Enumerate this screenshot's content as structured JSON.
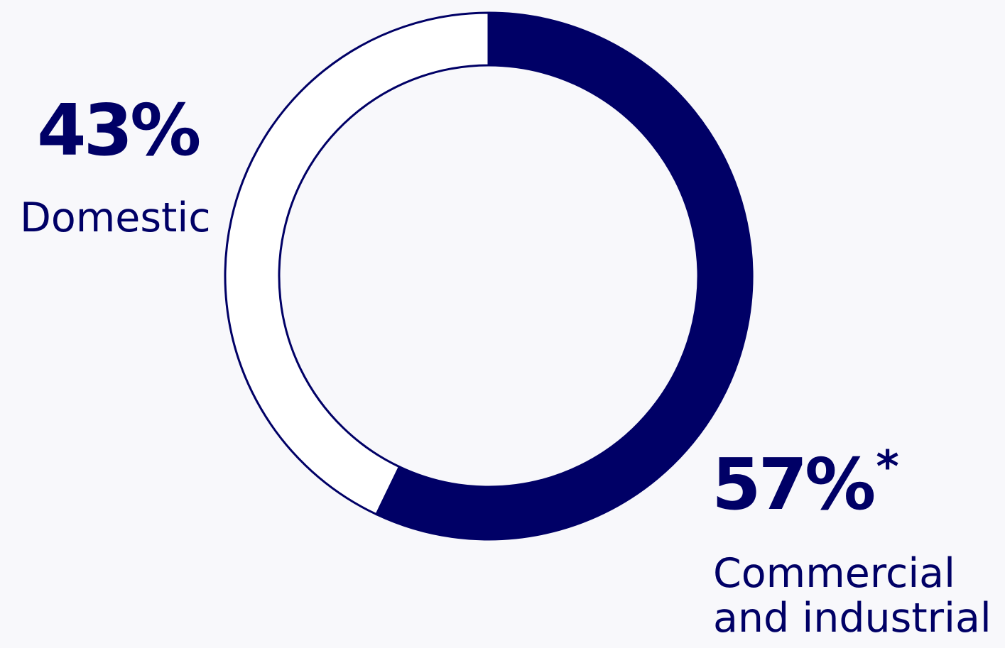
{
  "chart_data": {
    "type": "pie",
    "variant": "donut",
    "title": "",
    "slices": [
      {
        "label_line1": "Domestic",
        "label_line2": "",
        "value": 43,
        "value_text": "43%",
        "footnote_marker": "",
        "fill": "none"
      },
      {
        "label_line1": "Commercial",
        "label_line2": "and industrial",
        "value": 57,
        "value_text": "57%",
        "footnote_marker": "*",
        "fill": "#000066"
      }
    ],
    "start_angle_deg": 0,
    "direction": "clockwise",
    "legend": "none"
  },
  "colors": {
    "background": "#f8f8fb",
    "accent": "#000066",
    "empty_fill": "#ffffff"
  }
}
